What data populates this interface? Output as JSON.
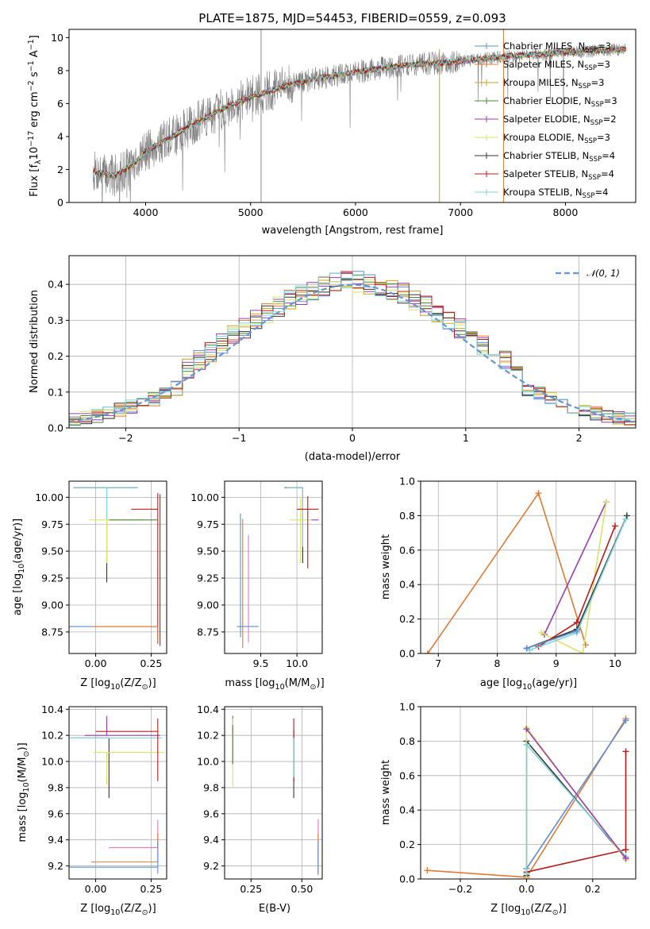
{
  "figure_title": "PLATE=1875, MJD=54453, FIBERID=0559, z=0.093",
  "colors": {
    "chabrier_miles": "#5b8fd6",
    "salpeter_miles": "#e07a34",
    "kroupa_miles": "#c8a21c",
    "chabrier_elodie": "#4c8a3c",
    "salpeter_elodie": "#9b3db2",
    "kroupa_elodie": "#d9e36a",
    "chabrier_stelib": "#333333",
    "salpeter_stelib": "#b71c1c",
    "kroupa_stelib": "#7fd3d9",
    "data": "#808080",
    "pink": "#e377c2",
    "normal": "#6495d6"
  },
  "chart_data": [
    {
      "id": "spectrum",
      "type": "line",
      "title": "PLATE=1875, MJD=54453, FIBERID=0559, z=0.093",
      "xlabel": "wavelength [Angstrom, rest frame]",
      "ylabel": "Flux [f$_\\lambda$10$^{-17}$ erg cm$^{-2}$ s$^{-1}$ A$^{-1}$]",
      "ylabel_parts": [
        "Flux [f",
        "λ",
        "10",
        "−17",
        " erg cm",
        "−2",
        " s",
        "−1",
        " A",
        "−1",
        "]"
      ],
      "xlim": [
        3270,
        8670
      ],
      "ylim": [
        0,
        10.5
      ],
      "xticks": [
        4000,
        5000,
        6000,
        7000,
        8000
      ],
      "yticks": [
        0,
        2,
        4,
        6,
        8,
        10
      ],
      "continuum_x": [
        3500,
        3700,
        3900,
        4000,
        4200,
        4500,
        4800,
        5000,
        5300,
        5600,
        6000,
        6300,
        6600,
        6900,
        7200,
        7500,
        7800,
        8000,
        8300,
        8580
      ],
      "continuum_y": [
        1.9,
        1.6,
        2.4,
        3.1,
        3.8,
        4.9,
        5.9,
        6.4,
        7.0,
        7.5,
        7.9,
        8.2,
        8.4,
        8.5,
        8.7,
        8.9,
        9.0,
        9.1,
        9.2,
        9.3
      ],
      "spikes_x": [
        5100,
        6800,
        7410
      ],
      "legend": [
        {
          "name": "Chabrier MILES, N",
          "sub": "SSP",
          "tail": "=3"
        },
        {
          "name": "Salpeter MILES, N",
          "sub": "SSP",
          "tail": "=3"
        },
        {
          "name": "Kroupa MILES, N",
          "sub": "SSP",
          "tail": "=3"
        },
        {
          "name": "Chabrier ELODIE, N",
          "sub": "SSP",
          "tail": "=3"
        },
        {
          "name": "Salpeter ELODIE, N",
          "sub": "SSP",
          "tail": "=2"
        },
        {
          "name": "Kroupa ELODIE, N",
          "sub": "SSP",
          "tail": "=3"
        },
        {
          "name": "Chabrier STELIB, N",
          "sub": "SSP",
          "tail": "=4"
        },
        {
          "name": "Salpeter STELIB, N",
          "sub": "SSP",
          "tail": "=4"
        },
        {
          "name": "Kroupa STELIB, N",
          "sub": "SSP",
          "tail": "=4"
        }
      ],
      "legend_position": "right"
    },
    {
      "id": "residuals",
      "type": "histogram",
      "xlabel": "(data-model)/error",
      "ylabel": "Normed distribution",
      "xlim": [
        -2.5,
        2.5
      ],
      "ylim": [
        0,
        0.48
      ],
      "xticks": [
        -2,
        -1,
        0,
        1,
        2
      ],
      "yticks": [
        0.0,
        0.1,
        0.2,
        0.3,
        0.4
      ],
      "bin_width": 0.1,
      "legend": "𝒩(0, 1)",
      "legend_position": "top-right",
      "grid": true
    },
    {
      "id": "age-z",
      "type": "errorbar",
      "xlabel": "Z [log",
      "xlabel_sub": "10",
      "xlabel_tail": "(Z/Z",
      "xlabel_sun": "⊙",
      "xlabel_end": ")]",
      "ylabel": "age  [log",
      "ylabel_sub": "10",
      "ylabel_tail": "(age/yr)]",
      "xlim": [
        -0.12,
        0.32
      ],
      "ylim": [
        8.55,
        10.15
      ],
      "xticks": [
        0.0,
        0.25
      ],
      "yticks": [
        8.75,
        9.0,
        9.25,
        9.5,
        9.75,
        10.0
      ],
      "grid": true
    },
    {
      "id": "age-mass",
      "type": "errorbar",
      "xlabel": "mass [log",
      "xlabel_sub": "10",
      "xlabel_tail": "(M/M",
      "xlabel_sun": "⊙",
      "xlabel_end": ")]",
      "xlim": [
        9.0,
        10.35
      ],
      "ylim": [
        8.55,
        10.15
      ],
      "xticks": [
        9.5,
        10.0
      ],
      "yticks": [
        8.75,
        9.0,
        9.25,
        9.5,
        9.75,
        10.0
      ],
      "grid": true
    },
    {
      "id": "weight-age",
      "type": "line",
      "xlabel": "age  [log",
      "xlabel_sub": "10",
      "xlabel_tail": "(age/yr)]",
      "ylabel": "mass weight",
      "xlim": [
        6.7,
        10.35
      ],
      "ylim": [
        0,
        1.0
      ],
      "xticks": [
        7,
        8,
        9,
        10
      ],
      "yticks": [
        0.0,
        0.2,
        0.4,
        0.6,
        0.8,
        1.0
      ],
      "grid": true,
      "series": [
        {
          "color_key": "salpeter_miles",
          "x": [
            6.82,
            8.7,
            9.5
          ],
          "y": [
            0.0,
            0.93,
            0.05
          ]
        },
        {
          "color_key": "salpeter_elodie",
          "x": [
            8.8,
            9.85
          ],
          "y": [
            0.11,
            0.88
          ]
        },
        {
          "color_key": "kroupa_elodie",
          "x": [
            8.75,
            9.45,
            9.85
          ],
          "y": [
            0.12,
            0.0,
            0.88
          ]
        },
        {
          "color_key": "chabrier_stelib",
          "x": [
            8.5,
            9.35,
            10.2
          ],
          "y": [
            0.03,
            0.14,
            0.8
          ]
        },
        {
          "color_key": "salpeter_stelib",
          "x": [
            8.7,
            9.35,
            10.0
          ],
          "y": [
            0.04,
            0.18,
            0.74
          ]
        },
        {
          "color_key": "kroupa_stelib",
          "x": [
            8.55,
            9.35,
            10.18
          ],
          "y": [
            0.02,
            0.12,
            0.78
          ]
        },
        {
          "color_key": "chabrier_miles",
          "x": [
            8.5,
            9.35
          ],
          "y": [
            0.03,
            0.13
          ]
        }
      ]
    },
    {
      "id": "mass-z",
      "type": "errorbar",
      "xlabel": "Z [log",
      "xlabel_sub": "10",
      "xlabel_tail": "(Z/Z",
      "xlabel_sun": "⊙",
      "xlabel_end": ")]",
      "ylabel": "mass [log",
      "ylabel_sub": "10",
      "ylabel_tail": "(M/M",
      "ylabel_sun": "⊙",
      "ylabel_end": ")]",
      "xlim": [
        -0.12,
        0.32
      ],
      "ylim": [
        9.1,
        10.42
      ],
      "xticks": [
        0.0,
        0.25
      ],
      "yticks": [
        9.2,
        9.4,
        9.6,
        9.8,
        10.0,
        10.2,
        10.4
      ],
      "grid": true
    },
    {
      "id": "mass-ebv",
      "type": "errorbar",
      "xlabel": "E(B-V)",
      "xlim": [
        0.12,
        0.6
      ],
      "ylim": [
        9.1,
        10.42
      ],
      "xticks": [
        0.25,
        0.5
      ],
      "yticks": [
        9.2,
        9.4,
        9.6,
        9.8,
        10.0,
        10.2,
        10.4
      ],
      "grid": true
    },
    {
      "id": "weight-z",
      "type": "line",
      "xlabel": "Z [log",
      "xlabel_sub": "10",
      "xlabel_tail": "(Z/Z",
      "xlabel_sun": "⊙",
      "xlabel_end": ")]",
      "ylabel": "mass weight",
      "xlim": [
        -0.32,
        0.33
      ],
      "ylim": [
        0,
        1.0
      ],
      "xticks": [
        -0.2,
        0.0,
        0.2
      ],
      "yticks": [
        0.0,
        0.2,
        0.4,
        0.6,
        0.8,
        1.0
      ],
      "grid": true,
      "series": [
        {
          "color_key": "salpeter_miles",
          "x": [
            -0.3,
            0.0,
            0.3
          ],
          "y": [
            0.05,
            0.01,
            0.93
          ]
        },
        {
          "color_key": "chabrier_miles",
          "x": [
            0.0,
            0.3
          ],
          "y": [
            0.06,
            0.92
          ]
        },
        {
          "color_key": "salpeter_stelib",
          "x": [
            0.0,
            0.3,
            0.3
          ],
          "y": [
            0.04,
            0.17,
            0.74
          ]
        },
        {
          "color_key": "chabrier_stelib",
          "x": [
            0.0,
            0.0,
            0.3
          ],
          "y": [
            0.02,
            0.8,
            0.12
          ]
        },
        {
          "color_key": "kroupa_elodie",
          "x": [
            0.0,
            0.0,
            0.3
          ],
          "y": [
            0.0,
            0.88,
            0.11
          ]
        },
        {
          "color_key": "kroupa_stelib",
          "x": [
            0.0,
            0.0,
            0.3
          ],
          "y": [
            0.03,
            0.78,
            0.13
          ]
        },
        {
          "color_key": "salpeter_elodie",
          "x": [
            0.0,
            0.3
          ],
          "y": [
            0.87,
            0.12
          ]
        }
      ]
    }
  ]
}
